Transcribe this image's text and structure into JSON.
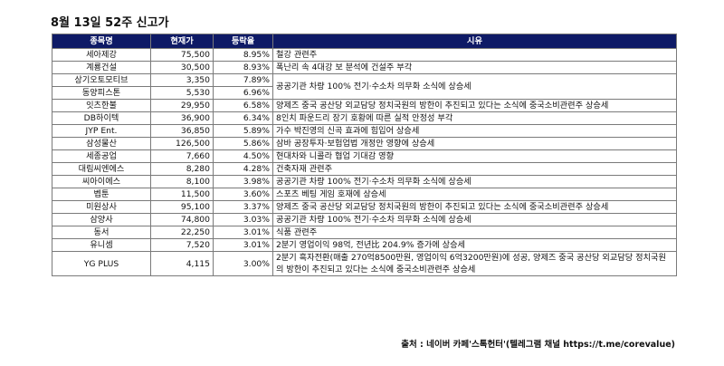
{
  "title": "8월 13일 52주 신고가",
  "headers": {
    "name": "종목명",
    "price": "현재가",
    "change": "등락율",
    "reason": "시유"
  },
  "rows": [
    {
      "name": "세아제강",
      "price": "75,500",
      "change": "8.95%",
      "reason": "철강 관련주"
    },
    {
      "name": "계룡건설",
      "price": "30,500",
      "change": "8.93%",
      "reason": "폭난리 속 4대강 보 분석에 건설주 부각"
    },
    {
      "name": "상기오토모티브",
      "price": "3,350",
      "change": "7.89%",
      "reason": ""
    },
    {
      "name": "동양피스톤",
      "price": "5,530",
      "change": "6.96%",
      "reason": ""
    },
    {
      "name": "잇츠한불",
      "price": "29,950",
      "change": "6.58%",
      "reason": "양제즈 중국 공산당 외교담당 정치국원의 방한이 추진되고 있다는 소식에 중국소비관련주 상승세"
    },
    {
      "name": "DB하이텍",
      "price": "36,900",
      "change": "6.34%",
      "reason": "8인치 파운드리 장기 호황에 따른 실적 안정성 부각"
    },
    {
      "name": "JYP Ent.",
      "price": "36,850",
      "change": "5.89%",
      "reason": "가수 박진영의 신곡 효과에 힘입어 상승세"
    },
    {
      "name": "삼성물산",
      "price": "126,500",
      "change": "5.86%",
      "reason": "삼바 공장투자·보험업법 개정안 영향에 상승세"
    },
    {
      "name": "세종공업",
      "price": "7,660",
      "change": "4.50%",
      "reason": "현대차와 니콜라 협업 기대감 영향"
    },
    {
      "name": "대림씨엔에스",
      "price": "8,280",
      "change": "4.28%",
      "reason": "건축자재 관련주"
    },
    {
      "name": "씨아이에스",
      "price": "8,100",
      "change": "3.98%",
      "reason": "공공기관 차량 100% 전기·수소차 의무화 소식에 상승세"
    },
    {
      "name": "벱툰",
      "price": "11,500",
      "change": "3.60%",
      "reason": "스포츠 베팅 게임 호재에 상승세"
    },
    {
      "name": "미원상사",
      "price": "95,100",
      "change": "3.37%",
      "reason": "양제즈 중국 공산당 외교담당 정치국원의 방한이 추진되고 있다는 소식에 중국소비관련주 상승세"
    },
    {
      "name": "삼양사",
      "price": "74,800",
      "change": "3.03%",
      "reason": "공공기관 차량 100% 전기·수소차 의무화 소식에 상승세"
    },
    {
      "name": "동서",
      "price": "22,250",
      "change": "3.01%",
      "reason": "식품 관련주"
    },
    {
      "name": "유니셈",
      "price": "7,520",
      "change": "3.01%",
      "reason": "2분기 영업이익 98억, 전년比 204.9% 증가에 상승세"
    },
    {
      "name": "YG PLUS",
      "price": "4,115",
      "change": "3.00%",
      "reason": "2분기 흑자전환(매출 270억8500만원, 영업이익 6억3200만원)에 성공, 양제즈 중국 공산당 외교담당 정치국원의 방한이 추진되고 있다는 소식에 중국소비관련주 상승세"
    }
  ],
  "merged_reason_rows_2_3": "공공기관 차량 100% 전기·수소차 의무화 소식에 상승세",
  "source": "출처 : 네이버 카페'스톡헌터'(텔레그램 채널 https://t.me/corevalue)"
}
